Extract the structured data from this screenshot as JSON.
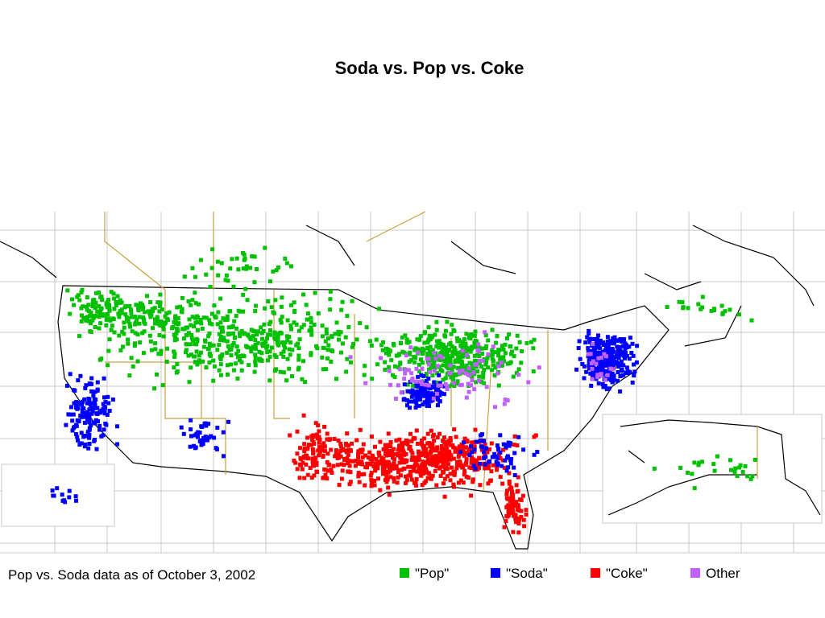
{
  "title": "Soda vs. Pop vs. Coke",
  "map": {
    "caption": "Pop vs. Soda data as of  October 3, 2002",
    "legend": [
      {
        "label": "\"Pop\"",
        "color": "#00c000"
      },
      {
        "label": "\"Soda\"",
        "color": "#0000ff"
      },
      {
        "label": "\"Coke\"",
        "color": "#ff0000"
      },
      {
        "label": "Other",
        "color": "#c060ff"
      }
    ]
  }
}
